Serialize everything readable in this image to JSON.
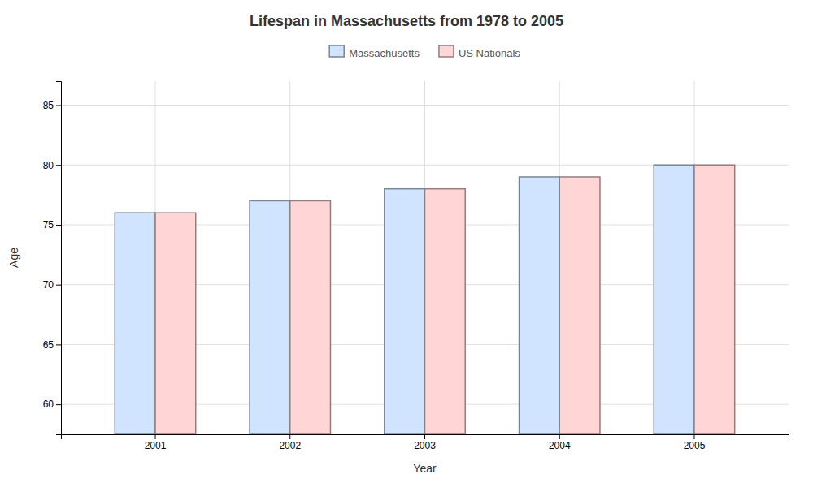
{
  "chart_data": {
    "type": "bar",
    "title": "Lifespan in Massachusetts from 1978 to 2005",
    "x_label": "Year",
    "y_label": "Age",
    "categories": [
      "2001",
      "2002",
      "2003",
      "2004",
      "2005"
    ],
    "series": [
      {
        "name": "Massachusetts",
        "color": "#d0e4ff",
        "values": [
          76,
          77,
          78,
          79,
          80
        ]
      },
      {
        "name": "US Nationals",
        "color": "#ffd5d5",
        "values": [
          76,
          77,
          78,
          79,
          80
        ]
      }
    ],
    "ylim": [
      57.5,
      87
    ],
    "yticks": [
      60,
      65,
      70,
      75,
      80,
      85
    ],
    "grid": true,
    "legend": "upper center"
  }
}
